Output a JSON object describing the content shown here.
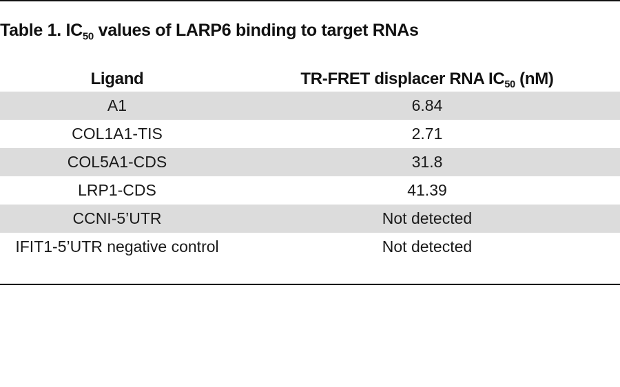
{
  "table": {
    "title_prefix": "Table 1. IC",
    "title_sub": "50",
    "title_suffix": " values of LARP6 binding to target RNAs",
    "header": {
      "ligand": "Ligand",
      "ic50_prefix": "TR-FRET displacer RNA IC",
      "ic50_sub": "50",
      "ic50_suffix": " (nM)"
    },
    "rows": [
      {
        "ligand": "A1",
        "value": "6.84",
        "shaded": true
      },
      {
        "ligand": "COL1A1-TIS",
        "value": "2.71",
        "shaded": false
      },
      {
        "ligand": "COL5A1-CDS",
        "value": "31.8",
        "shaded": true
      },
      {
        "ligand": "LRP1-CDS",
        "value": "41.39",
        "shaded": false
      },
      {
        "ligand": "CCNI-5’UTR",
        "value": "Not detected",
        "shaded": true
      },
      {
        "ligand": "IFIT1-5’UTR negative control",
        "value": "Not detected",
        "shaded": false
      }
    ]
  },
  "colors": {
    "row_shade": "#dcdcdc",
    "rule": "#111111"
  }
}
